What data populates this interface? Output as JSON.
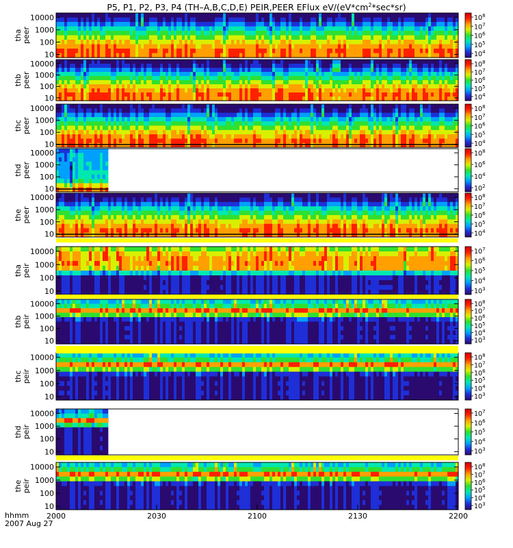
{
  "title": {
    "prefix": "P5, P1, P2, P3, P4 (TH–A,B,C,D,E) PEIR,PEER EFlux eV/(eV*cm",
    "sup": "2",
    "suffix": "*sec*sr)"
  },
  "time_axis": {
    "label_line1": "hhmm",
    "label_line2": "2007 Aug 27",
    "ticks": [
      "2000",
      "2030",
      "2100",
      "2130",
      "2200"
    ]
  },
  "chart_data": {
    "type": "heatmap",
    "x_range": [
      "2000",
      "2200"
    ],
    "x_ticks": [
      "2000",
      "2030",
      "2100",
      "2130",
      "2200"
    ],
    "panels": [
      {
        "id": "tha_peer",
        "label": [
          "tha",
          "peer"
        ],
        "yticks": [
          "10",
          "100",
          "1000",
          "10000"
        ],
        "cbar": [
          {
            "b": "10",
            "e": "8"
          },
          {
            "b": "10",
            "e": "7"
          },
          {
            "b": "10",
            "e": "6"
          },
          {
            "b": "10",
            "e": "5"
          },
          {
            "b": "10",
            "e": "4"
          }
        ],
        "data_end_frac": 1.0,
        "bottom_line": false,
        "top_yellow": false,
        "bottom_yellow": false,
        "kind": "peer"
      },
      {
        "id": "thb_peer",
        "label": [
          "thb",
          "peer"
        ],
        "yticks": [
          "10",
          "100",
          "1000",
          "10000"
        ],
        "cbar": [
          {
            "b": "10",
            "e": "8"
          },
          {
            "b": "10",
            "e": "7"
          },
          {
            "b": "10",
            "e": "6"
          },
          {
            "b": "10",
            "e": "5"
          },
          {
            "b": "10",
            "e": "4"
          }
        ],
        "data_end_frac": 1.0,
        "bottom_line": false,
        "top_yellow": false,
        "bottom_yellow": false,
        "kind": "peer"
      },
      {
        "id": "thc_peer",
        "label": [
          "thc",
          "peer"
        ],
        "yticks": [
          "10",
          "100",
          "1000",
          "10000"
        ],
        "cbar": [
          {
            "b": "10",
            "e": "8"
          },
          {
            "b": "10",
            "e": "7"
          },
          {
            "b": "10",
            "e": "6"
          },
          {
            "b": "10",
            "e": "5"
          },
          {
            "b": "10",
            "e": "4"
          }
        ],
        "data_end_frac": 1.0,
        "bottom_line": true,
        "top_yellow": false,
        "bottom_yellow": false,
        "kind": "peer"
      },
      {
        "id": "thd_peer",
        "label": [
          "thd",
          "peer"
        ],
        "yticks": [
          "10",
          "100",
          "1000",
          "10000"
        ],
        "cbar": [
          {
            "b": "10",
            "e": "8"
          },
          {
            "b": "10",
            "e": "6"
          },
          {
            "b": "10",
            "e": "4"
          },
          {
            "b": "10",
            "e": "2"
          }
        ],
        "data_end_frac": 0.13,
        "bottom_line": true,
        "top_yellow": false,
        "bottom_yellow": false,
        "kind": "peer_thd"
      },
      {
        "id": "the_peer",
        "label": [
          "the",
          "peer"
        ],
        "yticks": [
          "10",
          "100",
          "1000",
          "10000"
        ],
        "cbar": [
          {
            "b": "10",
            "e": "8"
          },
          {
            "b": "10",
            "e": "7"
          },
          {
            "b": "10",
            "e": "6"
          },
          {
            "b": "10",
            "e": "5"
          },
          {
            "b": "10",
            "e": "4"
          }
        ],
        "data_end_frac": 1.0,
        "bottom_line": true,
        "top_yellow": false,
        "bottom_yellow": true,
        "kind": "peer"
      },
      {
        "id": "tha_peir",
        "label": [
          "tha",
          "peir"
        ],
        "yticks": [
          "10",
          "100",
          "1000",
          "10000"
        ],
        "cbar": [
          {
            "b": "10",
            "e": "7"
          },
          {
            "b": "10",
            "e": "6"
          },
          {
            "b": "10",
            "e": "5"
          },
          {
            "b": "10",
            "e": "4"
          },
          {
            "b": "10",
            "e": "3"
          }
        ],
        "data_end_frac": 1.0,
        "bottom_line": false,
        "top_yellow": false,
        "bottom_yellow": false,
        "kind": "peir_a"
      },
      {
        "id": "thb_peir",
        "label": [
          "thb",
          "peir"
        ],
        "yticks": [
          "10",
          "100",
          "1000",
          "10000"
        ],
        "cbar": [
          {
            "b": "10",
            "e": "8"
          },
          {
            "b": "10",
            "e": "7"
          },
          {
            "b": "10",
            "e": "6"
          },
          {
            "b": "10",
            "e": "5"
          },
          {
            "b": "10",
            "e": "4"
          },
          {
            "b": "10",
            "e": "3"
          }
        ],
        "data_end_frac": 1.0,
        "bottom_line": false,
        "top_yellow": false,
        "bottom_yellow": true,
        "kind": "peir"
      },
      {
        "id": "thc_peir",
        "label": [
          "thc",
          "peir"
        ],
        "yticks": [
          "10",
          "100",
          "1000",
          "10000"
        ],
        "cbar": [
          {
            "b": "10",
            "e": "8"
          },
          {
            "b": "10",
            "e": "7"
          },
          {
            "b": "10",
            "e": "6"
          },
          {
            "b": "10",
            "e": "5"
          },
          {
            "b": "10",
            "e": "4"
          },
          {
            "b": "10",
            "e": "3"
          }
        ],
        "data_end_frac": 1.0,
        "bottom_line": false,
        "top_yellow": false,
        "bottom_yellow": false,
        "kind": "peir"
      },
      {
        "id": "thd_peir",
        "label": [
          "thd",
          "peir"
        ],
        "yticks": [
          "10",
          "100",
          "1000",
          "10000"
        ],
        "cbar": [
          {
            "b": "10",
            "e": "7"
          },
          {
            "b": "10",
            "e": "6"
          },
          {
            "b": "10",
            "e": "5"
          },
          {
            "b": "10",
            "e": "4"
          },
          {
            "b": "10",
            "e": "3"
          }
        ],
        "data_end_frac": 0.13,
        "bottom_line": false,
        "top_yellow": false,
        "bottom_yellow": true,
        "kind": "peir_d"
      },
      {
        "id": "the_peir",
        "label": [
          "the",
          "peir"
        ],
        "yticks": [
          "10",
          "100",
          "1000",
          "10000"
        ],
        "cbar": [
          {
            "b": "10",
            "e": "8"
          },
          {
            "b": "10",
            "e": "7"
          },
          {
            "b": "10",
            "e": "6"
          },
          {
            "b": "10",
            "e": "5"
          },
          {
            "b": "10",
            "e": "4"
          },
          {
            "b": "10",
            "e": "3"
          }
        ],
        "data_end_frac": 1.0,
        "bottom_line": false,
        "top_yellow": false,
        "bottom_yellow": false,
        "kind": "peir"
      }
    ],
    "colormap": [
      "#2a0a6e",
      "#1e2fd8",
      "#00a0ff",
      "#00e8b0",
      "#30e030",
      "#d8f000",
      "#ffa000",
      "#ff2000",
      "#d00000"
    ]
  }
}
